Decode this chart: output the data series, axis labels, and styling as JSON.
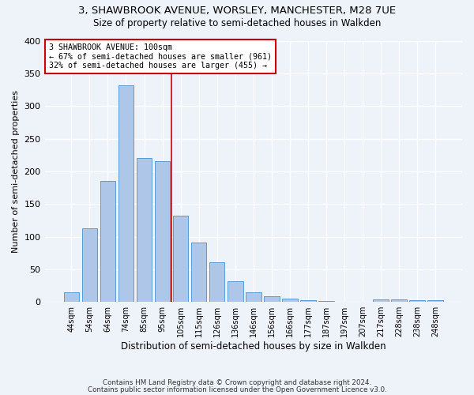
{
  "title": "3, SHAWBROOK AVENUE, WORSLEY, MANCHESTER, M28 7UE",
  "subtitle": "Size of property relative to semi-detached houses in Walkden",
  "xlabel": "Distribution of semi-detached houses by size in Walkden",
  "ylabel": "Number of semi-detached properties",
  "footer_line1": "Contains HM Land Registry data © Crown copyright and database right 2024.",
  "footer_line2": "Contains public sector information licensed under the Open Government Licence v3.0.",
  "categories": [
    "44sqm",
    "54sqm",
    "64sqm",
    "74sqm",
    "85sqm",
    "95sqm",
    "105sqm",
    "115sqm",
    "126sqm",
    "136sqm",
    "146sqm",
    "156sqm",
    "166sqm",
    "177sqm",
    "187sqm",
    "197sqm",
    "207sqm",
    "217sqm",
    "228sqm",
    "238sqm",
    "248sqm"
  ],
  "values": [
    15,
    113,
    185,
    332,
    220,
    215,
    132,
    91,
    61,
    32,
    15,
    9,
    5,
    3,
    1,
    0,
    0,
    4,
    4,
    3,
    3
  ],
  "bar_color": "#aec6e8",
  "bar_edge_color": "#5b9bd5",
  "property_label": "3 SHAWBROOK AVENUE: 100sqm",
  "pct_smaller": 67,
  "pct_smaller_n": 961,
  "pct_larger": 32,
  "pct_larger_n": 455,
  "vline_color": "#cc0000",
  "vline_x_index": 5.5,
  "annotation_box_color": "#cc0000",
  "bg_color": "#eef2f9",
  "grid_color": "#ffffff",
  "ylim": [
    0,
    400
  ],
  "yticks": [
    0,
    50,
    100,
    150,
    200,
    250,
    300,
    350,
    400
  ]
}
